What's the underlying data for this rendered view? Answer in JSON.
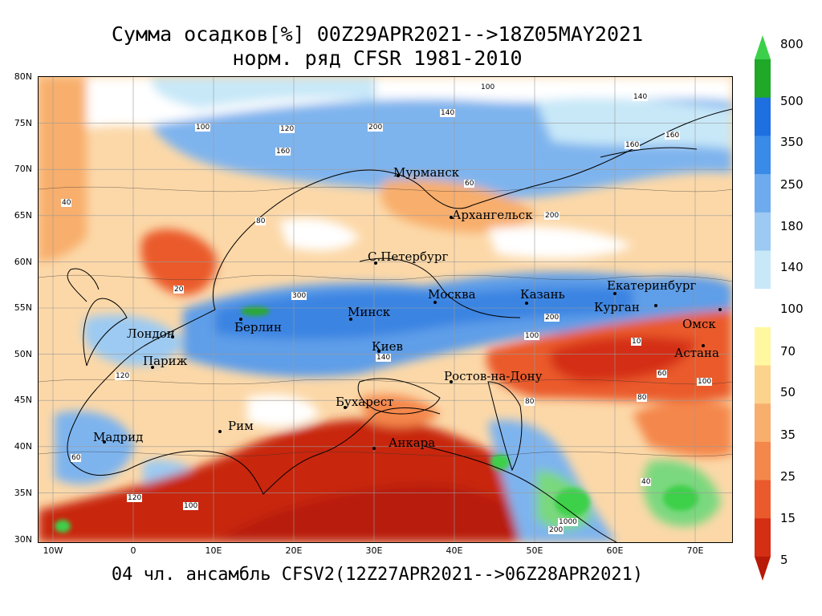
{
  "title_line1": "Сумма осадков[%] 00Z29APR2021-->18Z05MAY2021",
  "title_line2": "норм. ряд CFSR 1981-2010",
  "footer": "04 чл. ансамбль CFSV2(12Z27APR2021-->06Z28APR2021)",
  "lat_labels": [
    "80N",
    "75N",
    "70N",
    "65N",
    "60N",
    "55N",
    "50N",
    "45N",
    "40N",
    "35N",
    "30N"
  ],
  "lon_labels": [
    "10W",
    "0",
    "10E",
    "20E",
    "30E",
    "40E",
    "50E",
    "60E",
    "70E"
  ],
  "cities": [
    {
      "name": "Мурманск"
    },
    {
      "name": "Архангельск"
    },
    {
      "name": "С.Петербург"
    },
    {
      "name": "Москва"
    },
    {
      "name": "Казань"
    },
    {
      "name": "Екатеринбург"
    },
    {
      "name": "Курган"
    },
    {
      "name": "Омск"
    },
    {
      "name": "Астана"
    },
    {
      "name": "Минск"
    },
    {
      "name": "Берлин"
    },
    {
      "name": "Лондон"
    },
    {
      "name": "Париж"
    },
    {
      "name": "Киев"
    },
    {
      "name": "Ростов-на-Дону"
    },
    {
      "name": "Бухарест"
    },
    {
      "name": "Рим"
    },
    {
      "name": "Мадрид"
    },
    {
      "name": "Анкара"
    }
  ],
  "contour_labels": [
    "100",
    "120",
    "140",
    "160",
    "200",
    "60",
    "80",
    "40",
    "20",
    "10",
    "300",
    "1000",
    "200",
    "160",
    "140",
    "120",
    "100",
    "80",
    "60",
    "100",
    "120",
    "200",
    "160",
    "140",
    "100",
    "80",
    "60",
    "40",
    "100",
    "200"
  ],
  "colorbar": {
    "labels": [
      "800",
      "500",
      "350",
      "250",
      "180",
      "140",
      "100",
      "70",
      "50",
      "35",
      "25",
      "15",
      "5"
    ],
    "colors": [
      "#3cd04a",
      "#20a828",
      "#1e6fe0",
      "#3a8ae8",
      "#6eaaee",
      "#9ccaf2",
      "#c8e8f8",
      "#ffffff",
      "#fff8a0",
      "#fcd38c",
      "#f8ae6c",
      "#f4874c",
      "#ea5a2c",
      "#d42e14",
      "#b81a08"
    ]
  }
}
